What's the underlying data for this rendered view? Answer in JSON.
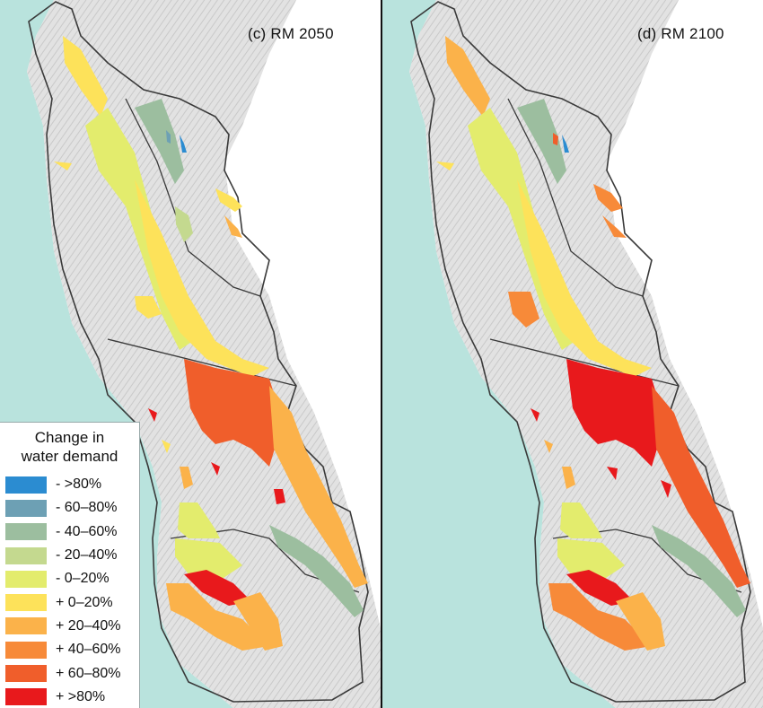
{
  "panels": [
    {
      "id": "left",
      "title": "(c) RM 2050"
    },
    {
      "id": "right",
      "title": "(d) RM 2100"
    }
  ],
  "colors": {
    "ocean": "#b9e3dd",
    "terrain": "#dadada",
    "boundary": "#3a3a3a",
    "white_land": "#ffffff"
  },
  "legend": {
    "title_line1": "Change in",
    "title_line2": "water demand",
    "items": [
      {
        "label": "- >80%",
        "color": "#2b8cd1"
      },
      {
        "label": "- 60–80%",
        "color": "#6da0b4"
      },
      {
        "label": "- 40–60%",
        "color": "#9cbe9f"
      },
      {
        "label": "- 20–40%",
        "color": "#c4d98f"
      },
      {
        "label": "-  0–20%",
        "color": "#e3ec6d"
      },
      {
        "label": "+ 0–20%",
        "color": "#fde25a"
      },
      {
        "label": "+ 20–40%",
        "color": "#fbb24a"
      },
      {
        "label": "+ 40–60%",
        "color": "#f78a39"
      },
      {
        "label": "+ 60–80%",
        "color": "#f05e2b"
      },
      {
        "label": "+ >80%",
        "color": "#e8191c"
      }
    ]
  }
}
